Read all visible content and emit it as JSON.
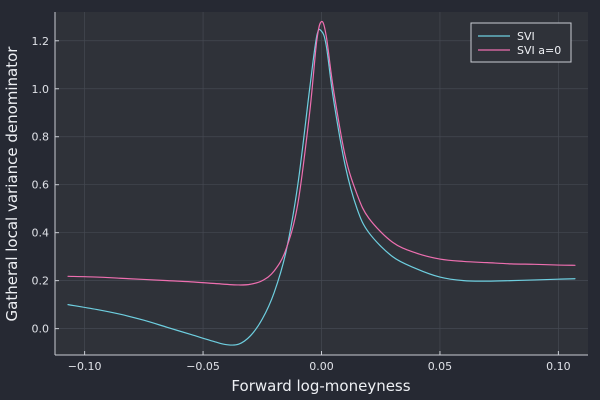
{
  "chart_data": {
    "type": "line",
    "xlabel": "Forward log-moneyness",
    "ylabel": "Gatheral local variance denominator",
    "xlim": [
      -0.1125,
      0.1125
    ],
    "ylim": [
      -0.11,
      1.32
    ],
    "xticks": [
      -0.1,
      -0.05,
      0.0,
      0.05,
      0.1
    ],
    "xtick_labels": [
      "−0.10",
      "−0.05",
      "0.00",
      "0.05",
      "0.10"
    ],
    "yticks": [
      0.0,
      0.2,
      0.4,
      0.6,
      0.8,
      1.0,
      1.2
    ],
    "ytick_labels": [
      "0.0",
      "0.2",
      "0.4",
      "0.6",
      "0.8",
      "1.0",
      "1.2"
    ],
    "grid": true,
    "legend_position": "top-right",
    "series": [
      {
        "name": "SVI",
        "color": "#6ecfe0",
        "x": [
          -0.107,
          -0.095,
          -0.085,
          -0.075,
          -0.065,
          -0.055,
          -0.045,
          -0.04,
          -0.035,
          -0.03,
          -0.025,
          -0.02,
          -0.015,
          -0.01,
          -0.005,
          -0.002,
          0.0,
          0.002,
          0.005,
          0.01,
          0.015,
          0.02,
          0.03,
          0.04,
          0.05,
          0.06,
          0.07,
          0.08,
          0.09,
          0.1,
          0.107
        ],
        "y": [
          0.1,
          0.08,
          0.06,
          0.035,
          0.005,
          -0.025,
          -0.055,
          -0.067,
          -0.065,
          -0.03,
          0.04,
          0.15,
          0.32,
          0.6,
          1.0,
          1.22,
          1.24,
          1.18,
          0.96,
          0.68,
          0.5,
          0.4,
          0.3,
          0.25,
          0.215,
          0.2,
          0.198,
          0.2,
          0.203,
          0.206,
          0.208
        ]
      },
      {
        "name": "SVI a=0",
        "color": "#ee6fb0",
        "x": [
          -0.107,
          -0.095,
          -0.085,
          -0.075,
          -0.065,
          -0.055,
          -0.045,
          -0.035,
          -0.03,
          -0.025,
          -0.02,
          -0.015,
          -0.01,
          -0.005,
          -0.002,
          0.0,
          0.002,
          0.005,
          0.01,
          0.015,
          0.02,
          0.03,
          0.04,
          0.05,
          0.06,
          0.07,
          0.08,
          0.09,
          0.1,
          0.107
        ],
        "y": [
          0.218,
          0.215,
          0.21,
          0.205,
          0.2,
          0.195,
          0.188,
          0.182,
          0.185,
          0.2,
          0.24,
          0.33,
          0.52,
          0.9,
          1.2,
          1.28,
          1.22,
          1.0,
          0.72,
          0.56,
          0.46,
          0.36,
          0.315,
          0.29,
          0.28,
          0.275,
          0.27,
          0.268,
          0.265,
          0.264
        ]
      }
    ]
  }
}
